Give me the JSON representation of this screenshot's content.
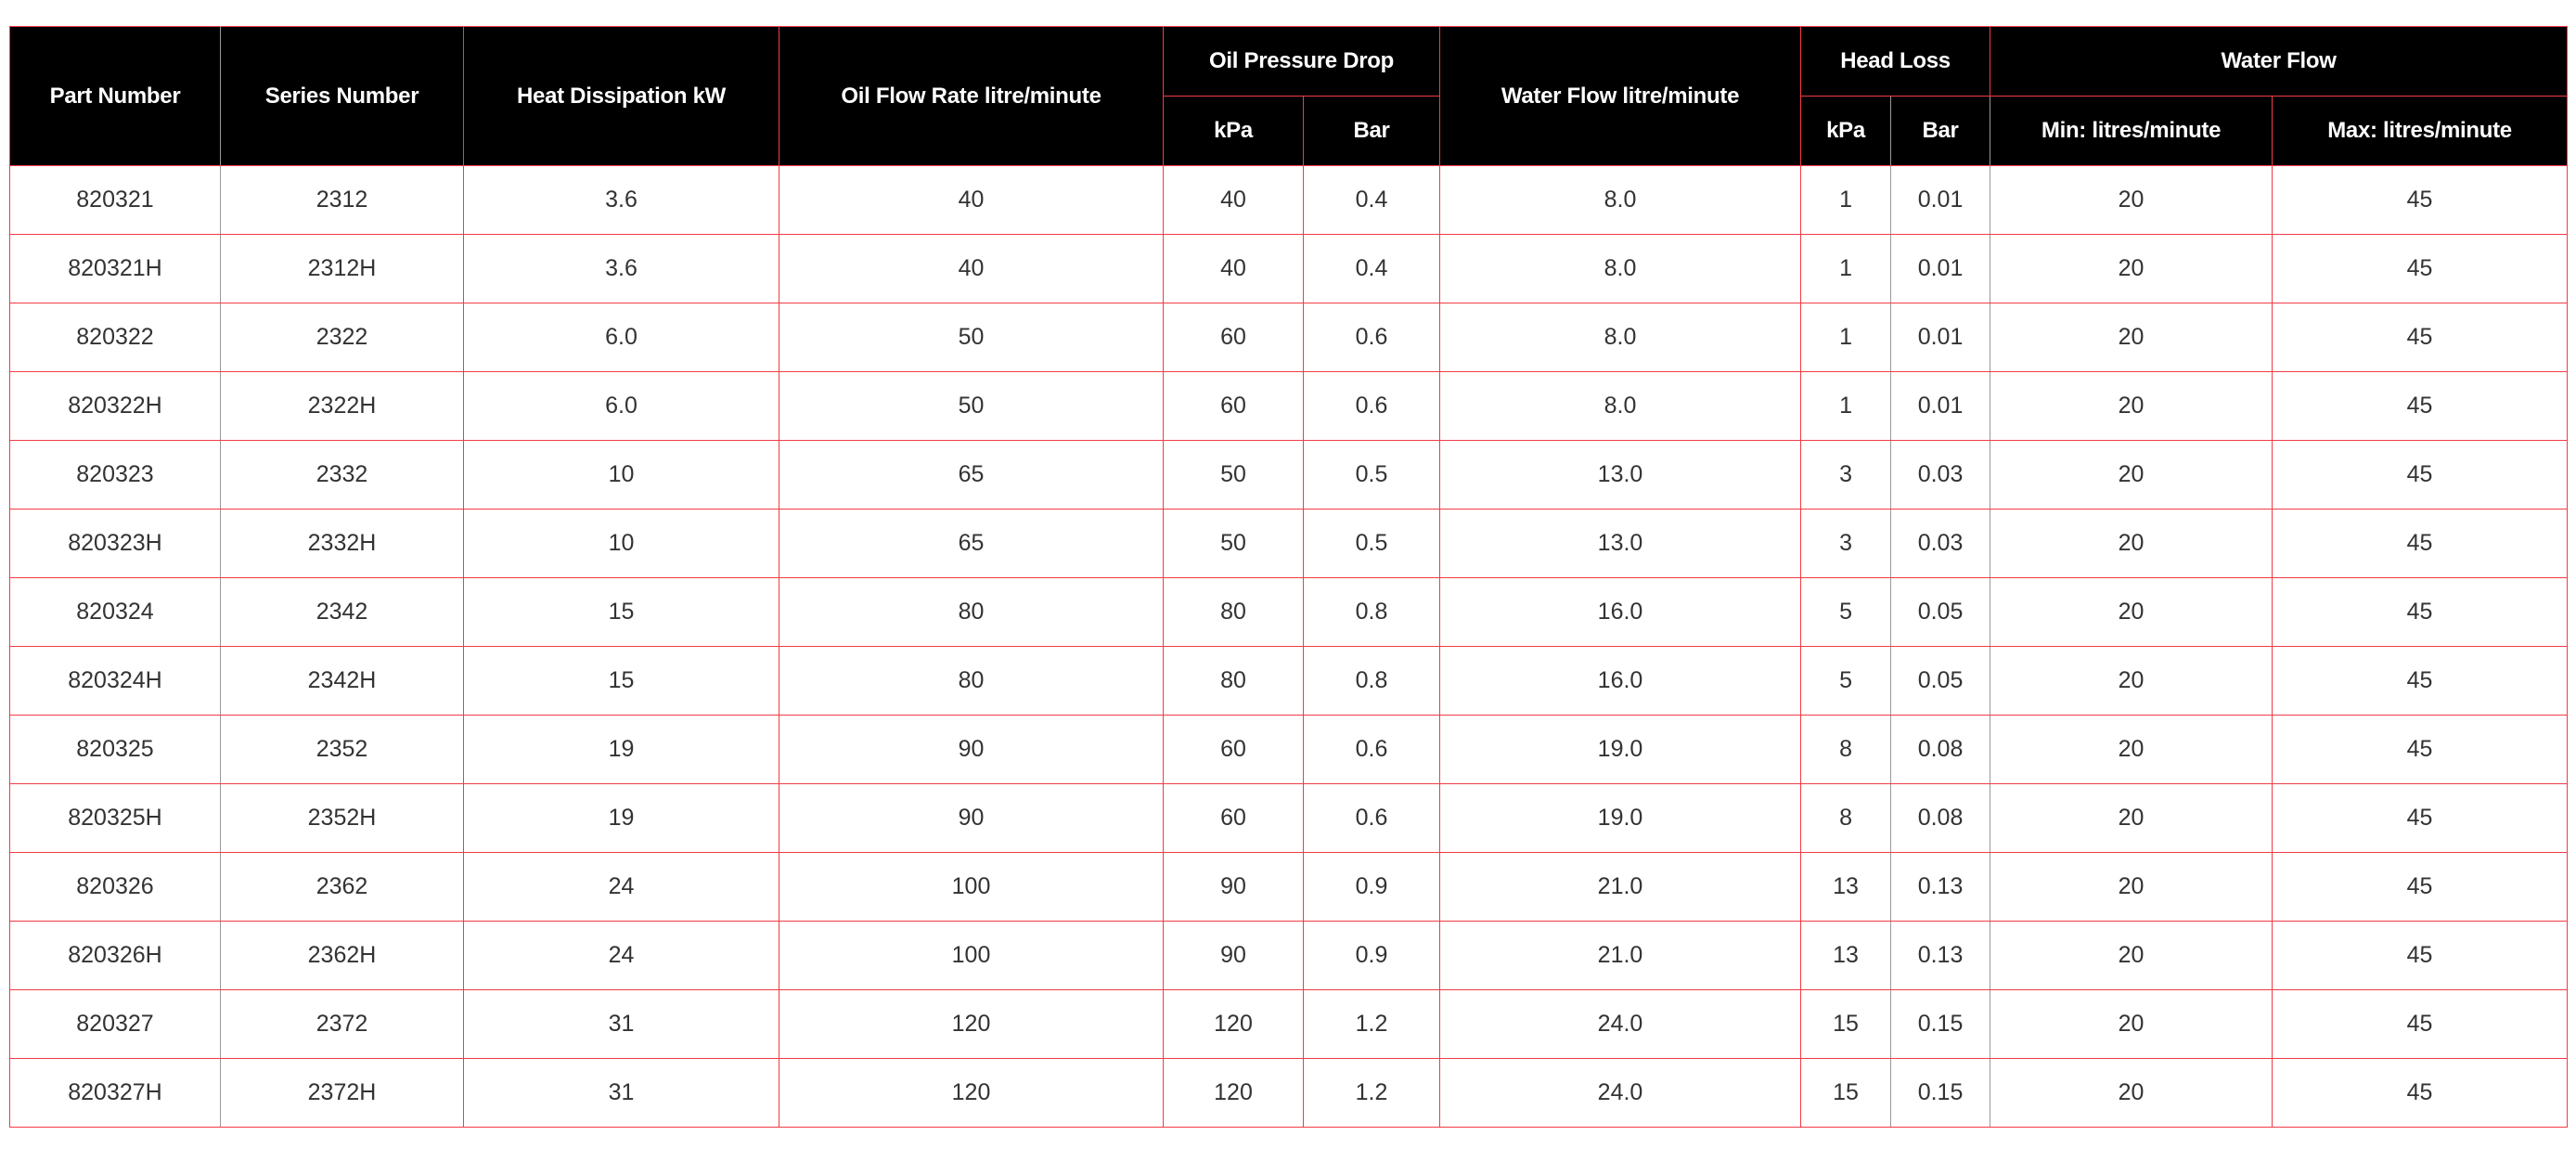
{
  "headers": {
    "part_number": "Part Number",
    "series_number": "Series Number",
    "heat_dissipation": "Heat Dissipation kW",
    "oil_flow_rate": "Oil Flow Rate litre/minute",
    "oil_pressure_drop": "Oil Pressure Drop",
    "opd_kpa": "kPa",
    "opd_bar": "Bar",
    "water_flow_rate": "Water Flow litre/minute",
    "head_loss": "Head Loss",
    "hl_kpa": "kPa",
    "hl_bar": "Bar",
    "water_flow": "Water Flow",
    "wf_min": "Min: litres/minute",
    "wf_max": "Max: litres/minute"
  },
  "rows": [
    [
      "820321",
      "2312",
      "3.6",
      "40",
      "40",
      "0.4",
      "8.0",
      "1",
      "0.01",
      "20",
      "45"
    ],
    [
      "820321H",
      "2312H",
      "3.6",
      "40",
      "40",
      "0.4",
      "8.0",
      "1",
      "0.01",
      "20",
      "45"
    ],
    [
      "820322",
      "2322",
      "6.0",
      "50",
      "60",
      "0.6",
      "8.0",
      "1",
      "0.01",
      "20",
      "45"
    ],
    [
      "820322H",
      "2322H",
      "6.0",
      "50",
      "60",
      "0.6",
      "8.0",
      "1",
      "0.01",
      "20",
      "45"
    ],
    [
      "820323",
      "2332",
      "10",
      "65",
      "50",
      "0.5",
      "13.0",
      "3",
      "0.03",
      "20",
      "45"
    ],
    [
      "820323H",
      "2332H",
      "10",
      "65",
      "50",
      "0.5",
      "13.0",
      "3",
      "0.03",
      "20",
      "45"
    ],
    [
      "820324",
      "2342",
      "15",
      "80",
      "80",
      "0.8",
      "16.0",
      "5",
      "0.05",
      "20",
      "45"
    ],
    [
      "820324H",
      "2342H",
      "15",
      "80",
      "80",
      "0.8",
      "16.0",
      "5",
      "0.05",
      "20",
      "45"
    ],
    [
      "820325",
      "2352",
      "19",
      "90",
      "60",
      "0.6",
      "19.0",
      "8",
      "0.08",
      "20",
      "45"
    ],
    [
      "820325H",
      "2352H",
      "19",
      "90",
      "60",
      "0.6",
      "19.0",
      "8",
      "0.08",
      "20",
      "45"
    ],
    [
      "820326",
      "2362",
      "24",
      "100",
      "90",
      "0.9",
      "21.0",
      "13",
      "0.13",
      "20",
      "45"
    ],
    [
      "820326H",
      "2362H",
      "24",
      "100",
      "90",
      "0.9",
      "21.0",
      "13",
      "0.13",
      "20",
      "45"
    ],
    [
      "820327",
      "2372",
      "31",
      "120",
      "120",
      "1.2",
      "24.0",
      "15",
      "0.15",
      "20",
      "45"
    ],
    [
      "820327H",
      "2372H",
      "31",
      "120",
      "120",
      "1.2",
      "24.0",
      "15",
      "0.15",
      "20",
      "45"
    ]
  ],
  "colors": {
    "header_bg": "#000000",
    "border": "#f03c46",
    "header_text": "#ffffff",
    "body_text": "#333333"
  }
}
